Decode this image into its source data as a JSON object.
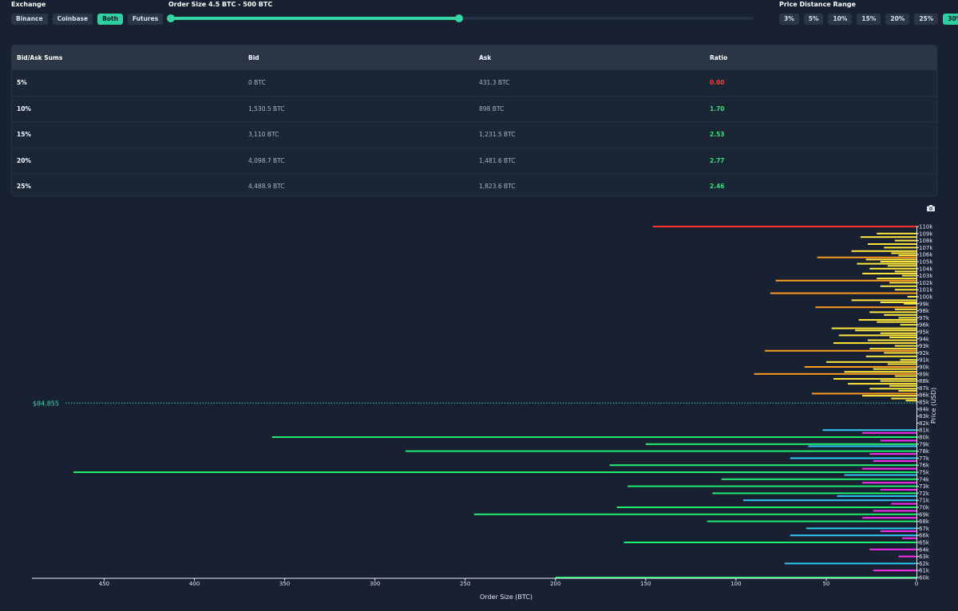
{
  "controls": {
    "exchange_label": "Exchange",
    "exchanges": [
      {
        "label": "Binance",
        "active": false
      },
      {
        "label": "Coinbase",
        "active": false
      },
      {
        "label": "Both",
        "active": true
      },
      {
        "label": "Futures",
        "active": false
      }
    ],
    "order_size_label": "Order Size 4.5 BTC - 500 BTC",
    "order_size_range": {
      "min_fraction": 0.0,
      "max_fraction": 0.495
    },
    "distance_label": "Price Distance Range",
    "distances": [
      {
        "label": "3%",
        "active": false
      },
      {
        "label": "5%",
        "active": false
      },
      {
        "label": "10%",
        "active": false
      },
      {
        "label": "15%",
        "active": false
      },
      {
        "label": "20%",
        "active": false
      },
      {
        "label": "25%",
        "active": false
      },
      {
        "label": "30%",
        "active": true
      }
    ]
  },
  "table": {
    "headers": [
      "Bid/Ask Sums",
      "Bid",
      "Ask",
      "Ratio"
    ],
    "rows": [
      {
        "label": "5%",
        "bid": "0 BTC",
        "ask": "431.3 BTC",
        "ratio": "0.00",
        "ratio_color": "#ff3a3a"
      },
      {
        "label": "10%",
        "bid": "1,530.5 BTC",
        "ask": "898 BTC",
        "ratio": "1.70",
        "ratio_color": "#32e07b"
      },
      {
        "label": "15%",
        "bid": "3,110 BTC",
        "ask": "1,231.5 BTC",
        "ratio": "2.53",
        "ratio_color": "#32e07b"
      },
      {
        "label": "20%",
        "bid": "4,098.7 BTC",
        "ask": "1,481.6 BTC",
        "ratio": "2.77",
        "ratio_color": "#32e07b"
      },
      {
        "label": "25%",
        "bid": "4,488.9 BTC",
        "ask": "1,823.6 BTC",
        "ratio": "2.46",
        "ratio_color": "#32e07b"
      }
    ]
  },
  "colors": {
    "accent": "#2ecfa0",
    "ask_small": "#ffe63b",
    "ask_large": "#ff9a1f",
    "ask_max": "#ff3030",
    "bid_binance": "#ff2bf0",
    "bid_coinbase": "#2ec7f5",
    "bid_large": "#22ee6e"
  },
  "icons": {
    "camera": "camera-icon"
  },
  "chart_data": {
    "type": "bar",
    "orientation": "horizontal",
    "xlabel": "Order Size (BTC)",
    "ylabel": "Price (USD)",
    "xlim": [
      0,
      490
    ],
    "x_reversed": true,
    "ylim": [
      60000,
      110000
    ],
    "x_ticks": [
      0,
      50,
      100,
      150,
      200,
      250,
      300,
      350,
      400,
      450
    ],
    "y_tick_labels": [
      "60k",
      "61k",
      "62k",
      "63k",
      "64k",
      "65k",
      "66k",
      "67k",
      "68k",
      "69k",
      "70k",
      "71k",
      "72k",
      "73k",
      "74k",
      "75k",
      "76k",
      "77k",
      "78k",
      "79k",
      "80k",
      "81k",
      "82k",
      "83k",
      "84k",
      "85k",
      "86k",
      "87k",
      "88k",
      "89k",
      "90k",
      "91k",
      "92k",
      "93k",
      "94k",
      "95k",
      "96k",
      "97k",
      "98k",
      "99k",
      "100k",
      "101k",
      "102k",
      "103k",
      "104k",
      "105k",
      "106k",
      "107k",
      "108k",
      "109k",
      "110k"
    ],
    "current_price": {
      "value": 84855,
      "label": "$84,855"
    },
    "asks": [
      {
        "price": 110000,
        "size": 146,
        "color": "#ff3030"
      },
      {
        "price": 109000,
        "size": 22,
        "color": "#ffe63b"
      },
      {
        "price": 108500,
        "size": 31,
        "color": "#ffe63b"
      },
      {
        "price": 108000,
        "size": 12,
        "color": "#ffe63b"
      },
      {
        "price": 107500,
        "size": 27,
        "color": "#ffe63b"
      },
      {
        "price": 107000,
        "size": 18,
        "color": "#ffe63b"
      },
      {
        "price": 106500,
        "size": 36,
        "color": "#ffe63b"
      },
      {
        "price": 106200,
        "size": 14,
        "color": "#ffe63b"
      },
      {
        "price": 105900,
        "size": 10,
        "color": "#ffe63b"
      },
      {
        "price": 105600,
        "size": 55,
        "color": "#ff9a1f"
      },
      {
        "price": 105300,
        "size": 28,
        "color": "#ffe63b"
      },
      {
        "price": 105000,
        "size": 20,
        "color": "#ffe63b"
      },
      {
        "price": 104700,
        "size": 33,
        "color": "#ffe63b"
      },
      {
        "price": 104400,
        "size": 16,
        "color": "#ffe63b"
      },
      {
        "price": 104000,
        "size": 26,
        "color": "#ffe63b"
      },
      {
        "price": 103600,
        "size": 12,
        "color": "#ffe63b"
      },
      {
        "price": 103300,
        "size": 30,
        "color": "#ffe63b"
      },
      {
        "price": 103000,
        "size": 8,
        "color": "#ffe63b"
      },
      {
        "price": 102600,
        "size": 22,
        "color": "#ffe63b"
      },
      {
        "price": 102300,
        "size": 78,
        "color": "#ff9a1f"
      },
      {
        "price": 102000,
        "size": 15,
        "color": "#ffe63b"
      },
      {
        "price": 101500,
        "size": 20,
        "color": "#ffe63b"
      },
      {
        "price": 101000,
        "size": 12,
        "color": "#ffe63b"
      },
      {
        "price": 100500,
        "size": 81,
        "color": "#ff9a1f"
      },
      {
        "price": 100000,
        "size": 5,
        "color": "#ffe63b"
      },
      {
        "price": 99500,
        "size": 36,
        "color": "#ffe63b"
      },
      {
        "price": 99200,
        "size": 20,
        "color": "#ffe63b"
      },
      {
        "price": 99000,
        "size": 7,
        "color": "#ffe63b"
      },
      {
        "price": 98500,
        "size": 56,
        "color": "#ff9a1f"
      },
      {
        "price": 98200,
        "size": 12,
        "color": "#ffe63b"
      },
      {
        "price": 97800,
        "size": 26,
        "color": "#ffe63b"
      },
      {
        "price": 97400,
        "size": 18,
        "color": "#ffe63b"
      },
      {
        "price": 97000,
        "size": 10,
        "color": "#ffe63b"
      },
      {
        "price": 96700,
        "size": 32,
        "color": "#ffe63b"
      },
      {
        "price": 96400,
        "size": 22,
        "color": "#ffe63b"
      },
      {
        "price": 96000,
        "size": 9,
        "color": "#ffe63b"
      },
      {
        "price": 95500,
        "size": 47,
        "color": "#ffe63b"
      },
      {
        "price": 95200,
        "size": 34,
        "color": "#ffe63b"
      },
      {
        "price": 94800,
        "size": 20,
        "color": "#ffe63b"
      },
      {
        "price": 94500,
        "size": 43,
        "color": "#ffe63b"
      },
      {
        "price": 94200,
        "size": 15,
        "color": "#ffe63b"
      },
      {
        "price": 93800,
        "size": 27,
        "color": "#ffe63b"
      },
      {
        "price": 93400,
        "size": 46,
        "color": "#ffe63b"
      },
      {
        "price": 93000,
        "size": 12,
        "color": "#ffe63b"
      },
      {
        "price": 92600,
        "size": 26,
        "color": "#ffe63b"
      },
      {
        "price": 92300,
        "size": 84,
        "color": "#ff9a1f"
      },
      {
        "price": 92000,
        "size": 18,
        "color": "#ffe63b"
      },
      {
        "price": 91500,
        "size": 28,
        "color": "#ffe63b"
      },
      {
        "price": 91000,
        "size": 9,
        "color": "#ffe63b"
      },
      {
        "price": 90700,
        "size": 50,
        "color": "#ffe63b"
      },
      {
        "price": 90400,
        "size": 16,
        "color": "#ffe63b"
      },
      {
        "price": 90000,
        "size": 62,
        "color": "#ff9a1f"
      },
      {
        "price": 89700,
        "size": 24,
        "color": "#ffe63b"
      },
      {
        "price": 89300,
        "size": 40,
        "color": "#ffe63b"
      },
      {
        "price": 89000,
        "size": 90,
        "color": "#ff9a1f"
      },
      {
        "price": 88700,
        "size": 12,
        "color": "#ffe63b"
      },
      {
        "price": 88300,
        "size": 46,
        "color": "#ffe63b"
      },
      {
        "price": 88000,
        "size": 20,
        "color": "#ffe63b"
      },
      {
        "price": 87600,
        "size": 38,
        "color": "#ffe63b"
      },
      {
        "price": 87300,
        "size": 15,
        "color": "#ffe63b"
      },
      {
        "price": 86900,
        "size": 26,
        "color": "#ffe63b"
      },
      {
        "price": 86600,
        "size": 10,
        "color": "#ffe63b"
      },
      {
        "price": 86200,
        "size": 58,
        "color": "#ff9a1f"
      },
      {
        "price": 85900,
        "size": 30,
        "color": "#ffe63b"
      },
      {
        "price": 85500,
        "size": 14,
        "color": "#ffe63b"
      },
      {
        "price": 85200,
        "size": 6,
        "color": "#ffe63b"
      }
    ],
    "bids": [
      {
        "price": 81000,
        "size": 52,
        "color": "#2ec7f5"
      },
      {
        "price": 80600,
        "size": 30,
        "color": "#ff2bf0"
      },
      {
        "price": 80000,
        "size": 357,
        "color": "#22ee6e"
      },
      {
        "price": 79500,
        "size": 20,
        "color": "#ff2bf0"
      },
      {
        "price": 79000,
        "size": 150,
        "color": "#22ee6e"
      },
      {
        "price": 78700,
        "size": 60,
        "color": "#2ec7f5"
      },
      {
        "price": 78000,
        "size": 283,
        "color": "#22ee6e"
      },
      {
        "price": 77600,
        "size": 26,
        "color": "#ff2bf0"
      },
      {
        "price": 77000,
        "size": 70,
        "color": "#2ec7f5"
      },
      {
        "price": 76600,
        "size": 24,
        "color": "#ff2bf0"
      },
      {
        "price": 76000,
        "size": 170,
        "color": "#22ee6e"
      },
      {
        "price": 75500,
        "size": 30,
        "color": "#ff2bf0"
      },
      {
        "price": 75000,
        "size": 467,
        "color": "#22ee6e"
      },
      {
        "price": 74600,
        "size": 40,
        "color": "#2ec7f5"
      },
      {
        "price": 74000,
        "size": 108,
        "color": "#22ee6e"
      },
      {
        "price": 73500,
        "size": 30,
        "color": "#ff2bf0"
      },
      {
        "price": 73000,
        "size": 160,
        "color": "#22ee6e"
      },
      {
        "price": 72500,
        "size": 20,
        "color": "#ff2bf0"
      },
      {
        "price": 72000,
        "size": 113,
        "color": "#22ee6e"
      },
      {
        "price": 71600,
        "size": 44,
        "color": "#2ec7f5"
      },
      {
        "price": 71000,
        "size": 96,
        "color": "#2ec7f5"
      },
      {
        "price": 70500,
        "size": 14,
        "color": "#ff2bf0"
      },
      {
        "price": 70000,
        "size": 166,
        "color": "#22ee6e"
      },
      {
        "price": 69500,
        "size": 24,
        "color": "#ff2bf0"
      },
      {
        "price": 69000,
        "size": 245,
        "color": "#22ee6e"
      },
      {
        "price": 68500,
        "size": 30,
        "color": "#ff2bf0"
      },
      {
        "price": 68000,
        "size": 116,
        "color": "#22ee6e"
      },
      {
        "price": 67000,
        "size": 61,
        "color": "#2ec7f5"
      },
      {
        "price": 66600,
        "size": 20,
        "color": "#ff2bf0"
      },
      {
        "price": 66000,
        "size": 70,
        "color": "#2ec7f5"
      },
      {
        "price": 65600,
        "size": 8,
        "color": "#ff2bf0"
      },
      {
        "price": 65000,
        "size": 162,
        "color": "#22ee6e"
      },
      {
        "price": 64000,
        "size": 26,
        "color": "#ff2bf0"
      },
      {
        "price": 63000,
        "size": 10,
        "color": "#ff2bf0"
      },
      {
        "price": 62000,
        "size": 73,
        "color": "#2ec7f5"
      },
      {
        "price": 61000,
        "size": 24,
        "color": "#ff2bf0"
      },
      {
        "price": 60000,
        "size": 200,
        "color": "#22ee6e"
      }
    ]
  }
}
